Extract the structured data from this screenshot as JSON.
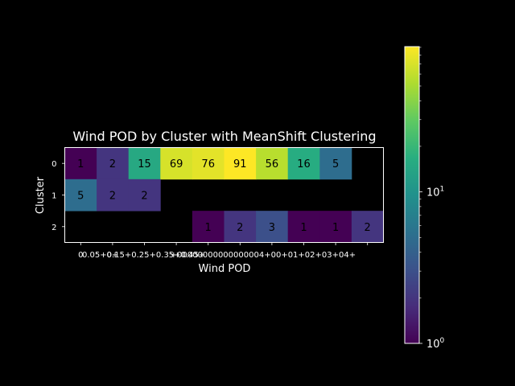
{
  "chart_data": {
    "type": "heatmap",
    "title": "Wind POD by Cluster with MeanShift Clustering",
    "xlabel": "Wind POD",
    "ylabel": "Cluster",
    "x_tick_labels": [
      "0",
      "0+",
      "0.05+",
      "0.15+",
      "0.25+",
      "0.35+",
      "0.45+",
      "0.55+",
      "0.65+",
      "0.75+"
    ],
    "x_tick_labels_rendered": [
      "0",
      "0+",
      "0.05+0.15+0.25+0.35+0.45+",
      "",
      "+00000000000000004+00+01+02+03+04+",
      "",
      "",
      "",
      "",
      ""
    ],
    "y_tick_labels": [
      "0",
      "1",
      "2"
    ],
    "rows": [
      [
        1,
        2,
        15,
        69,
        76,
        91,
        56,
        16,
        5,
        null
      ],
      [
        5,
        2,
        2,
        null,
        null,
        null,
        null,
        null,
        null,
        null
      ],
      [
        null,
        null,
        null,
        null,
        1,
        2,
        3,
        1,
        1,
        2
      ]
    ],
    "colorscale": "viridis",
    "color_scale_type": "log",
    "color_range": [
      1,
      91
    ],
    "colorbar_ticks": [
      {
        "value": 1,
        "base": "10",
        "exp": "0"
      },
      {
        "value": 10,
        "base": "10",
        "exp": "1"
      }
    ],
    "background": "#000000",
    "text_color": "#ffffff",
    "cell_text_color": "#000000"
  }
}
